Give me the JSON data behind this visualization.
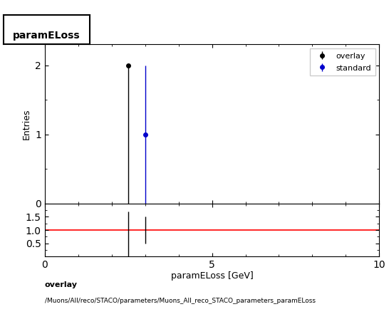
{
  "title": "paramELoss",
  "xlabel": "paramELoss [GeV]",
  "ylabel": "Entries",
  "xlim": [
    0,
    10
  ],
  "main_ylim": [
    0,
    2.3
  ],
  "ratio_ylim": [
    0,
    2.0
  ],
  "ratio_yticks": [
    0.5,
    1.0,
    1.5
  ],
  "main_yticks": [
    0,
    1,
    2
  ],
  "overlay_color": "#000000",
  "standard_color": "#0000cc",
  "ratio_line_color": "#ff0000",
  "overlay_x": [
    2.5
  ],
  "overlay_y": [
    2.0
  ],
  "overlay_yerr_lo": [
    2.0
  ],
  "overlay_yerr_hi": [
    0.0
  ],
  "standard_x": [
    3.0
  ],
  "standard_y": [
    1.0
  ],
  "standard_yerr_lo": [
    1.0
  ],
  "standard_yerr_hi": [
    1.0
  ],
  "overlay_label": "overlay",
  "standard_label": "standard",
  "footer_line1": "overlay",
  "footer_line2": "/Muons/All/reco/STACO/parameters/Muons_All_reco_STACO_parameters_paramELoss",
  "bg_color": "#ffffff",
  "ratio_x1": [
    2.5
  ],
  "ratio_x2": [
    3.0
  ],
  "ratio_y1": [
    1.0
  ],
  "ratio_y2": [
    1.0
  ],
  "ratio_err1_lo": [
    1.0
  ],
  "ratio_err1_hi": [
    0.7
  ],
  "ratio_err2_lo": [
    0.5
  ],
  "ratio_err2_hi": [
    0.5
  ]
}
